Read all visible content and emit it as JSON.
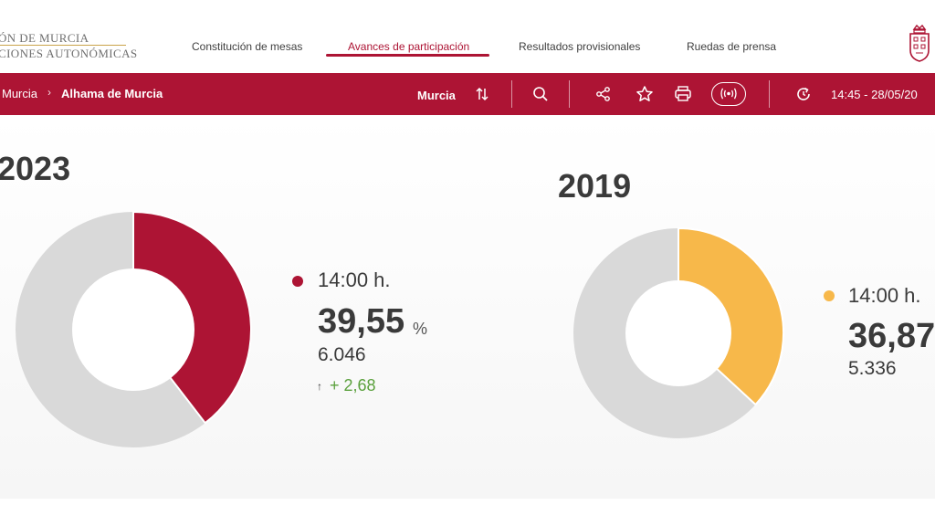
{
  "header": {
    "brand_line1": "ÓN DE MURCIA",
    "brand_line2": "CIONES AUTONÓMICAS",
    "nav": [
      {
        "label": "Constitución de mesas",
        "active": false
      },
      {
        "label": "Avances de participación",
        "active": true
      },
      {
        "label": "Resultados provisionales",
        "active": false
      },
      {
        "label": "Ruedas de prensa",
        "active": false
      }
    ],
    "crest_icon": "region-crest-icon"
  },
  "toolbar": {
    "breadcrumb": [
      "Murcia",
      "Alhama de Murcia"
    ],
    "breadcrumb_separator": "›",
    "region_select": "Murcia",
    "icons": [
      "sort-arrows-icon",
      "search-icon",
      "share-icon",
      "star-icon",
      "print-icon",
      "live-broadcast-icon",
      "refresh-clock-icon"
    ],
    "timestamp": "14:45 - 28/05/20",
    "bar_color": "#ad1434"
  },
  "panels": [
    {
      "year": "2023",
      "time": "14:00 h.",
      "percentage": "39,55",
      "percentage_value": 39.55,
      "unit": "%",
      "votes": "6.046",
      "delta_arrow": "↑",
      "delta": "+ 2,68",
      "color": "#ad1434"
    },
    {
      "year": "2019",
      "time": "14:00 h.",
      "percentage": "36,87",
      "percentage_value": 36.87,
      "votes": "5.336",
      "color": "#f7b84a"
    }
  ],
  "colors": {
    "accent": "#ad1434",
    "secondary": "#f7b84a",
    "positive": "#5aa03c",
    "track": "#d9d9d9"
  }
}
